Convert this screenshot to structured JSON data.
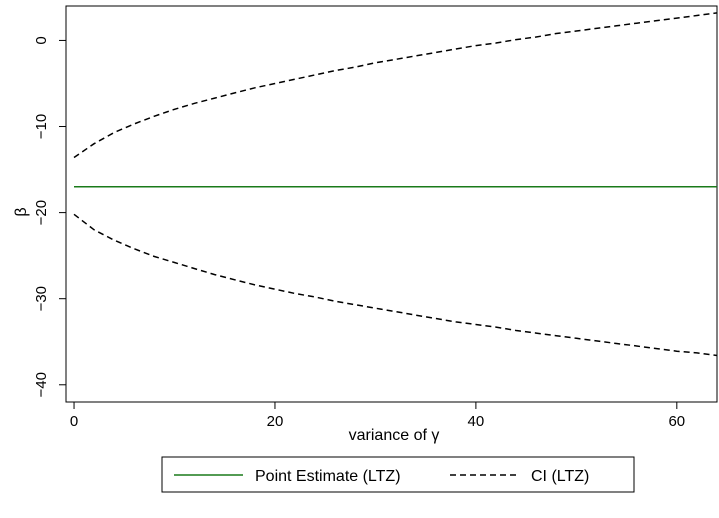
{
  "chart_data": {
    "type": "line",
    "title": "",
    "xlabel": "variance of γ",
    "ylabel": "β",
    "xlim": [
      -0.8,
      64
    ],
    "ylim": [
      -42,
      4
    ],
    "x_ticks": [
      0,
      20,
      40,
      60
    ],
    "y_ticks": [
      0,
      -10,
      -20,
      -30,
      -40
    ],
    "x_tick_labels": [
      "0",
      "20",
      "40",
      "60"
    ],
    "y_tick_labels": [
      "0",
      "−10",
      "−20",
      "−30",
      "−40"
    ],
    "grid": false,
    "legend_position": "bottom",
    "x": [
      0,
      2,
      4,
      6,
      8,
      10,
      12,
      14,
      16,
      18,
      20,
      22,
      24,
      26,
      28,
      30,
      32,
      34,
      36,
      38,
      40,
      42,
      44,
      46,
      48,
      50,
      52,
      54,
      56,
      58,
      60,
      62,
      64
    ],
    "series": [
      {
        "name": "Point Estimate (LTZ)",
        "style": "solid",
        "color": "#1a7a1a",
        "values": [
          -17,
          -17,
          -17,
          -17,
          -17,
          -17,
          -17,
          -17,
          -17,
          -17,
          -17,
          -17,
          -17,
          -17,
          -17,
          -17,
          -17,
          -17,
          -17,
          -17,
          -17,
          -17,
          -17,
          -17,
          -17,
          -17,
          -17,
          -17,
          -17,
          -17,
          -17,
          -17,
          -17
        ]
      },
      {
        "name": "CI (LTZ)",
        "style": "dashed",
        "color": "#000000",
        "values": [
          -13.6,
          -12.0,
          -10.7,
          -9.7,
          -8.8,
          -8.0,
          -7.3,
          -6.7,
          -6.1,
          -5.5,
          -5.0,
          -4.5,
          -4.0,
          -3.5,
          -3.1,
          -2.6,
          -2.2,
          -1.8,
          -1.4,
          -1.0,
          -0.6,
          -0.3,
          0.1,
          0.4,
          0.8,
          1.1,
          1.4,
          1.7,
          2.0,
          2.3,
          2.6,
          2.9,
          3.2
        ]
      },
      {
        "name": "",
        "legend": false,
        "style": "dashed",
        "color": "#000000",
        "values": [
          -20.2,
          -22.0,
          -23.2,
          -24.2,
          -25.1,
          -25.8,
          -26.5,
          -27.2,
          -27.8,
          -28.4,
          -28.9,
          -29.4,
          -29.8,
          -30.3,
          -30.7,
          -31.1,
          -31.5,
          -31.9,
          -32.3,
          -32.7,
          -33.0,
          -33.3,
          -33.7,
          -34.0,
          -34.3,
          -34.6,
          -34.9,
          -35.2,
          -35.5,
          -35.8,
          -36.1,
          -36.3,
          -36.6
        ]
      }
    ]
  }
}
